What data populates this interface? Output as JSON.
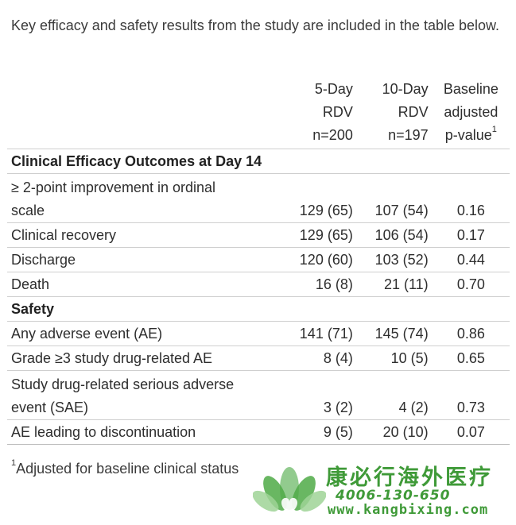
{
  "intro": "Key efficacy and safety results from the study are included in the table below.",
  "table": {
    "headers": {
      "col2": [
        "5-Day",
        "RDV",
        "n=200"
      ],
      "col3": [
        "10-Day",
        "RDV",
        "n=197"
      ],
      "col4": [
        "Baseline",
        "adjusted",
        "p-value"
      ],
      "col4_sup": "1"
    },
    "sections": [
      {
        "title": "Clinical Efficacy Outcomes at Day 14",
        "rows": [
          {
            "label_lines": [
              "≥ 2-point improvement in ordinal",
              "scale"
            ],
            "v5": "129 (65)",
            "v10": "107 (54)",
            "p": "0.16"
          },
          {
            "label_lines": [
              "Clinical recovery"
            ],
            "v5": "129 (65)",
            "v10": "106 (54)",
            "p": "0.17"
          },
          {
            "label_lines": [
              "Discharge"
            ],
            "v5": "120 (60)",
            "v10": "103 (52)",
            "p": "0.44"
          },
          {
            "label_lines": [
              "Death"
            ],
            "v5": "16 (8)",
            "v10": "21 (11)",
            "p": "0.70"
          }
        ]
      },
      {
        "title": "Safety",
        "rows": [
          {
            "label_lines": [
              "Any adverse event (AE)"
            ],
            "v5": "141 (71)",
            "v10": "145 (74)",
            "p": "0.86"
          },
          {
            "label_lines": [
              "Grade ≥3 study drug-related AE"
            ],
            "v5": "8 (4)",
            "v10": "10 (5)",
            "p": "0.65"
          },
          {
            "label_lines": [
              "Study drug-related serious adverse",
              "event (SAE)"
            ],
            "v5": "3 (2)",
            "v10": "4 (2)",
            "p": "0.73"
          },
          {
            "label_lines": [
              "AE leading to discontinuation"
            ],
            "v5": "9 (5)",
            "v10": "20 (10)",
            "p": "0.07"
          }
        ]
      }
    ]
  },
  "footnote": {
    "sup": "1",
    "text": "Adjusted for baseline clinical status"
  },
  "watermark": {
    "name": "康必行海外医疗",
    "phone": "4006-130-650",
    "url": "www.kangbixing.com",
    "color": "#3f9a38"
  }
}
